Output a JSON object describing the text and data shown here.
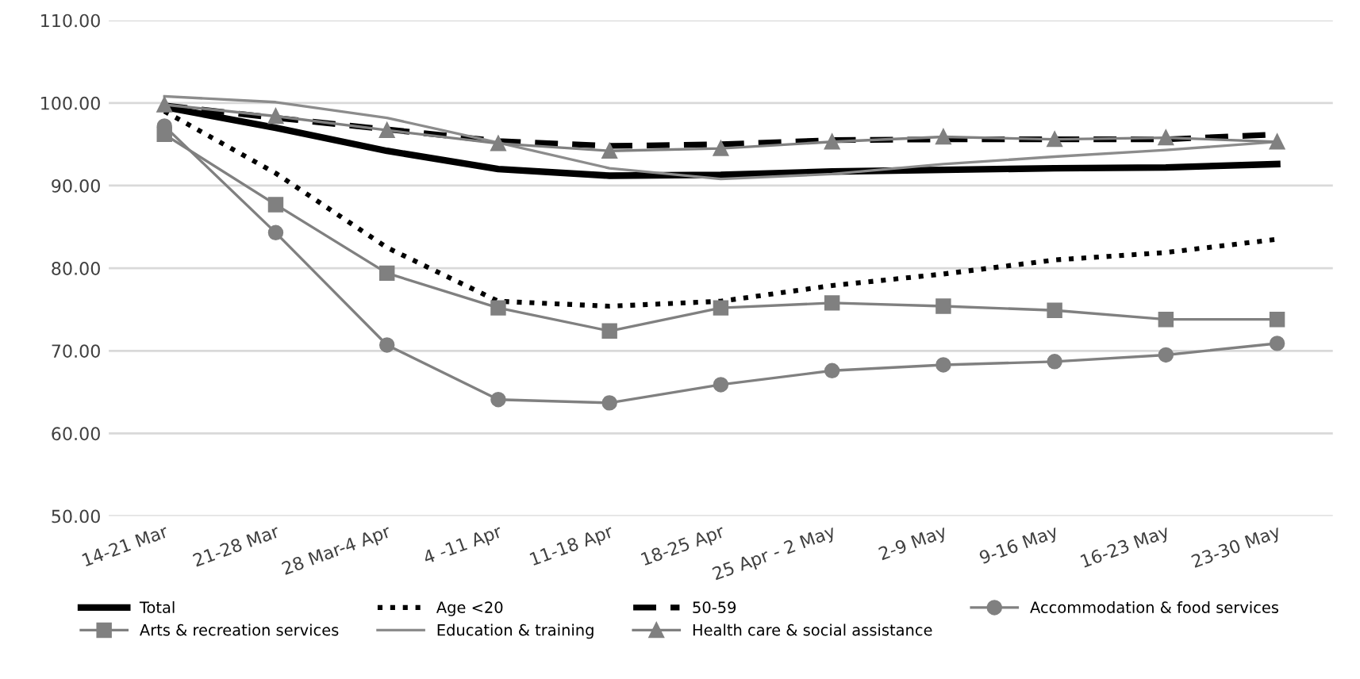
{
  "chart_data": {
    "type": "line",
    "categories": [
      "14-21 Mar",
      "21-28 Mar",
      "28 Mar-4 Apr",
      "4 -11 Apr",
      "11-18 Apr",
      "18-25 Apr",
      "25 Apr - 2 May",
      "2-9 May",
      "9-16 May",
      "16-23 May",
      "23-30 May"
    ],
    "series": [
      {
        "name": "Total",
        "color": "#000000",
        "line_style": "solid",
        "marker": "none",
        "values": [
          99.5,
          97.0,
          94.2,
          92.0,
          91.2,
          91.3,
          91.7,
          91.9,
          92.1,
          92.2,
          92.6
        ]
      },
      {
        "name": "Age <20",
        "color": "#000000",
        "line_style": "dotted",
        "marker": "none",
        "values": [
          99.0,
          91.5,
          82.5,
          76.0,
          75.4,
          76.0,
          77.9,
          79.3,
          81.0,
          81.9,
          83.5
        ]
      },
      {
        "name": "50-59",
        "color": "#000000",
        "line_style": "dashed",
        "marker": "none",
        "values": [
          99.7,
          98.2,
          96.8,
          95.4,
          94.8,
          95.0,
          95.5,
          95.6,
          95.6,
          95.6,
          96.2
        ]
      },
      {
        "name": "Accommodation & food services",
        "color": "#808080",
        "line_style": "solid",
        "marker": "circle",
        "values": [
          97.2,
          84.3,
          70.7,
          64.1,
          63.7,
          65.9,
          67.6,
          68.3,
          68.7,
          69.5,
          70.9
        ]
      },
      {
        "name": "Arts & recreation services",
        "color": "#808080",
        "line_style": "solid",
        "marker": "square",
        "values": [
          96.2,
          87.7,
          79.4,
          75.2,
          72.4,
          75.2,
          75.8,
          75.4,
          74.9,
          73.8,
          73.8
        ]
      },
      {
        "name": "Education & training",
        "color": "#8c8c8c",
        "line_style": "solid",
        "marker": "none",
        "values": [
          100.8,
          100.1,
          98.2,
          95.2,
          92.1,
          90.8,
          91.4,
          92.6,
          93.5,
          94.3,
          95.3
        ]
      },
      {
        "name": "Health care & social assistance",
        "color": "#808080",
        "line_style": "solid",
        "marker": "triangle",
        "values": [
          99.8,
          98.4,
          96.7,
          95.1,
          94.2,
          94.5,
          95.3,
          95.9,
          95.6,
          95.8,
          95.3
        ]
      }
    ],
    "ylim": [
      50,
      110
    ],
    "yticks": [
      {
        "value": 50,
        "label": "50.00"
      },
      {
        "value": 60,
        "label": "60.00"
      },
      {
        "value": 70,
        "label": "70.00"
      },
      {
        "value": 80,
        "label": "80.00"
      },
      {
        "value": 90,
        "label": "90.00"
      },
      {
        "value": 100,
        "label": "100.00"
      },
      {
        "value": 110,
        "label": "110.00"
      }
    ],
    "grid": "y",
    "legend": "bottom"
  }
}
